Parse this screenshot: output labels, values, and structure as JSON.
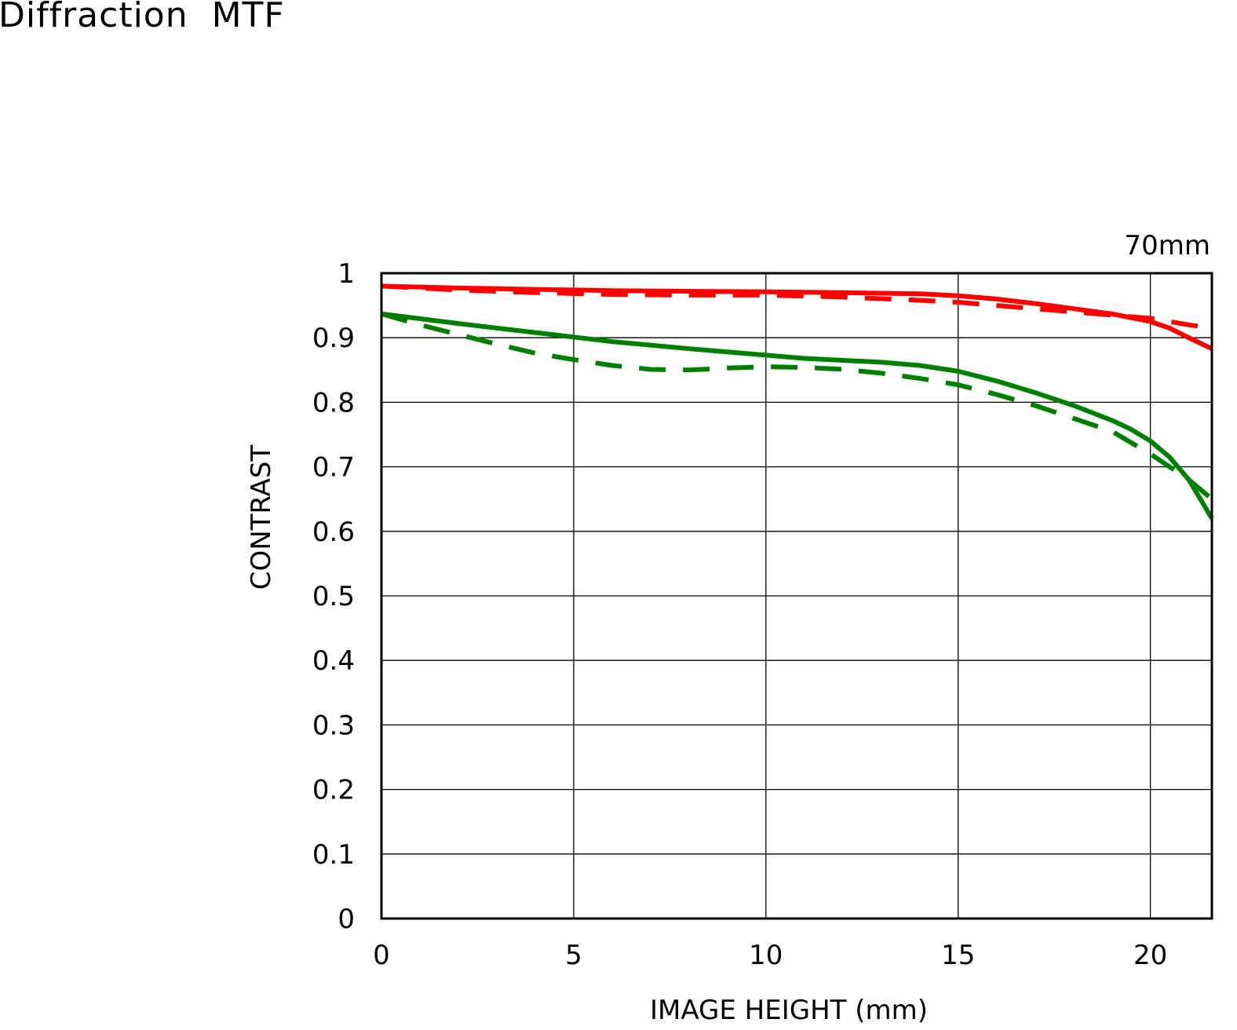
{
  "chart_data": {
    "type": "line",
    "title": "Diffraction  MTF",
    "focal_length_label": "70mm",
    "xlabel": "IMAGE HEIGHT (mm)",
    "ylabel": "CONTRAST",
    "xlim": [
      0,
      21.6
    ],
    "ylim": [
      0,
      1
    ],
    "x_ticks": [
      0,
      5,
      10,
      15,
      20
    ],
    "y_ticks": [
      0,
      0.1,
      0.2,
      0.3,
      0.4,
      0.5,
      0.6,
      0.7,
      0.8,
      0.9,
      1
    ],
    "y_tick_labels": [
      "0",
      "0.1",
      "0.2",
      "0.3",
      "0.4",
      "0.5",
      "0.6",
      "0.7",
      "0.8",
      "0.9",
      "1"
    ],
    "x_tick_labels": [
      "0",
      "5",
      "10",
      "15",
      "20"
    ],
    "grid": true,
    "series": [
      {
        "color": "#ff0000",
        "style": "solid",
        "x": [
          0,
          2,
          4,
          6,
          8,
          10,
          12,
          14,
          15,
          16,
          17,
          18,
          19,
          20,
          20.5,
          21,
          21.6
        ],
        "y": [
          0.98,
          0.977,
          0.975,
          0.973,
          0.972,
          0.971,
          0.97,
          0.968,
          0.965,
          0.96,
          0.953,
          0.945,
          0.937,
          0.925,
          0.915,
          0.9,
          0.883
        ]
      },
      {
        "color": "#ff0000",
        "style": "dashed",
        "x": [
          0,
          2,
          4,
          6,
          8,
          10,
          12,
          14,
          15,
          16,
          17,
          18,
          19,
          20,
          21,
          21.6
        ],
        "y": [
          0.98,
          0.974,
          0.97,
          0.967,
          0.966,
          0.966,
          0.963,
          0.958,
          0.955,
          0.95,
          0.945,
          0.94,
          0.935,
          0.93,
          0.92,
          0.915
        ]
      },
      {
        "color": "#008000",
        "style": "solid",
        "x": [
          0,
          2,
          4,
          6,
          8,
          10,
          11,
          12,
          13,
          14,
          15,
          16,
          17,
          18,
          19,
          19.5,
          20,
          20.5,
          21,
          21.6
        ],
        "y": [
          0.937,
          0.922,
          0.908,
          0.894,
          0.883,
          0.873,
          0.868,
          0.865,
          0.862,
          0.857,
          0.848,
          0.833,
          0.815,
          0.795,
          0.772,
          0.758,
          0.74,
          0.715,
          0.68,
          0.62
        ]
      },
      {
        "color": "#008000",
        "style": "dashed",
        "x": [
          0,
          1,
          2,
          3,
          4,
          5,
          6,
          7,
          8,
          9,
          10,
          11,
          12,
          13,
          14,
          15,
          16,
          17,
          18,
          19,
          20,
          20.5,
          21,
          21.6
        ],
        "y": [
          0.937,
          0.92,
          0.905,
          0.89,
          0.876,
          0.866,
          0.857,
          0.851,
          0.85,
          0.853,
          0.855,
          0.854,
          0.851,
          0.845,
          0.837,
          0.827,
          0.812,
          0.795,
          0.775,
          0.755,
          0.72,
          0.7,
          0.68,
          0.65
        ]
      }
    ]
  }
}
